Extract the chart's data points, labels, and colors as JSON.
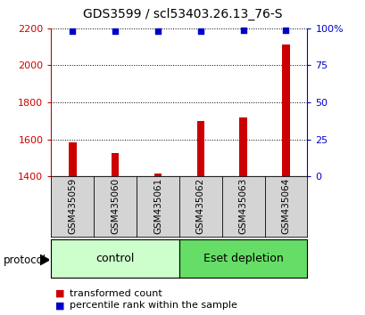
{
  "title": "GDS3599 / scl53403.26.13_76-S",
  "samples": [
    "GSM435059",
    "GSM435060",
    "GSM435061",
    "GSM435062",
    "GSM435063",
    "GSM435064"
  ],
  "transformed_counts": [
    1585,
    1525,
    1415,
    1700,
    1720,
    2115
  ],
  "percentile_ranks": [
    98,
    98,
    98,
    98,
    98.5,
    99
  ],
  "ylim_left": [
    1400,
    2200
  ],
  "ylim_right": [
    0,
    100
  ],
  "yticks_left": [
    1400,
    1600,
    1800,
    2000,
    2200
  ],
  "yticks_right": [
    0,
    25,
    50,
    75,
    100
  ],
  "ytick_labels_right": [
    "0",
    "25",
    "50",
    "75",
    "100%"
  ],
  "bar_color": "#cc0000",
  "scatter_color": "#0000cc",
  "group_labels": [
    "control",
    "Eset depletion"
  ],
  "group_ranges": [
    [
      0,
      3
    ],
    [
      3,
      6
    ]
  ],
  "group_colors_light": [
    "#ccffcc",
    "#66dd66"
  ],
  "group_colors_dark": [
    "#66dd66",
    "#00cc00"
  ],
  "protocol_label": "protocol",
  "legend_bar_label": "transformed count",
  "legend_scatter_label": "percentile rank within the sample",
  "bar_width": 0.18,
  "title_fontsize": 10,
  "tick_fontsize": 8,
  "group_label_fontsize": 9,
  "legend_fontsize": 8,
  "left_tick_color": "#cc0000",
  "right_tick_color": "#0000cc",
  "sample_box_color": "#d4d4d4"
}
